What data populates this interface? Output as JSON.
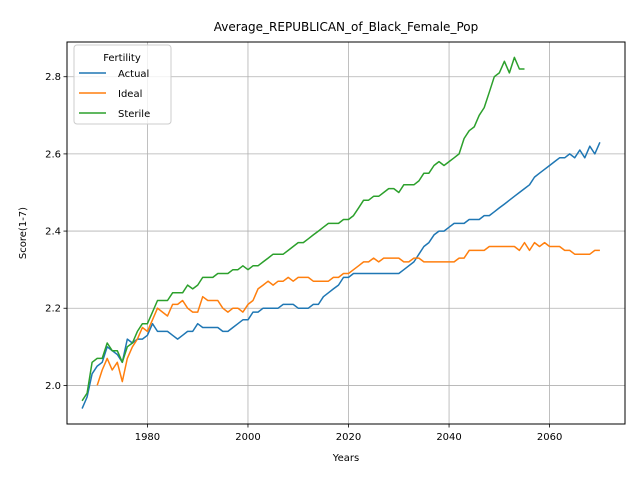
{
  "chart_data": {
    "type": "line",
    "title": "Average_REPUBLICAN_of_Black_Female_Pop",
    "xlabel": "Years",
    "ylabel": "Score(1-7)",
    "xlim": [
      1964,
      2075
    ],
    "ylim": [
      1.9,
      2.89
    ],
    "xticks": [
      1980,
      2000,
      2020,
      2040,
      2060
    ],
    "yticks": [
      2.0,
      2.2,
      2.4,
      2.6,
      2.8
    ],
    "xtick_labels": [
      "1980",
      "2000",
      "2020",
      "2040",
      "2060"
    ],
    "ytick_labels": [
      "2.0",
      "2.2",
      "2.4",
      "2.6",
      "2.8"
    ],
    "grid": true,
    "legend": {
      "title": "Fertility",
      "position": "upper-left"
    },
    "series": [
      {
        "name": "Actual",
        "color": "#1f77b4",
        "x": [
          1967,
          1968,
          1969,
          1970,
          1971,
          1972,
          1973,
          1974,
          1975,
          1976,
          1977,
          1978,
          1979,
          1980,
          1981,
          1982,
          1983,
          1984,
          1985,
          1986,
          1987,
          1988,
          1989,
          1990,
          1991,
          1992,
          1993,
          1994,
          1995,
          1996,
          1997,
          1998,
          1999,
          2000,
          2001,
          2002,
          2003,
          2004,
          2005,
          2006,
          2007,
          2008,
          2009,
          2010,
          2011,
          2012,
          2013,
          2014,
          2015,
          2016,
          2017,
          2018,
          2019,
          2020,
          2021,
          2022,
          2023,
          2024,
          2025,
          2026,
          2027,
          2028,
          2029,
          2030,
          2031,
          2032,
          2033,
          2034,
          2035,
          2036,
          2037,
          2038,
          2039,
          2040,
          2041,
          2042,
          2043,
          2044,
          2045,
          2046,
          2047,
          2048,
          2049,
          2050,
          2051,
          2052,
          2053,
          2054,
          2055,
          2056,
          2057,
          2058,
          2059,
          2060,
          2061,
          2062,
          2063,
          2064,
          2065,
          2066,
          2067,
          2068,
          2069,
          2070
        ],
        "y": [
          1.94,
          1.97,
          2.03,
          2.05,
          2.06,
          2.1,
          2.09,
          2.08,
          2.06,
          2.12,
          2.11,
          2.12,
          2.12,
          2.13,
          2.16,
          2.14,
          2.14,
          2.14,
          2.13,
          2.12,
          2.13,
          2.14,
          2.14,
          2.16,
          2.15,
          2.15,
          2.15,
          2.15,
          2.14,
          2.14,
          2.15,
          2.16,
          2.17,
          2.17,
          2.19,
          2.19,
          2.2,
          2.2,
          2.2,
          2.2,
          2.21,
          2.21,
          2.21,
          2.2,
          2.2,
          2.2,
          2.21,
          2.21,
          2.23,
          2.24,
          2.25,
          2.26,
          2.28,
          2.28,
          2.29,
          2.29,
          2.29,
          2.29,
          2.29,
          2.29,
          2.29,
          2.29,
          2.29,
          2.29,
          2.3,
          2.31,
          2.32,
          2.34,
          2.36,
          2.37,
          2.39,
          2.4,
          2.4,
          2.41,
          2.42,
          2.42,
          2.42,
          2.43,
          2.43,
          2.43,
          2.44,
          2.44,
          2.45,
          2.46,
          2.47,
          2.48,
          2.49,
          2.5,
          2.51,
          2.52,
          2.54,
          2.55,
          2.56,
          2.57,
          2.58,
          2.59,
          2.59,
          2.6,
          2.59,
          2.61,
          2.59,
          2.62,
          2.6,
          2.63
        ]
      },
      {
        "name": "Ideal",
        "color": "#ff7f0e",
        "x": [
          1970,
          1971,
          1972,
          1973,
          1974,
          1975,
          1976,
          1977,
          1978,
          1979,
          1980,
          1981,
          1982,
          1983,
          1984,
          1985,
          1986,
          1987,
          1988,
          1989,
          1990,
          1991,
          1992,
          1993,
          1994,
          1995,
          1996,
          1997,
          1998,
          1999,
          2000,
          2001,
          2002,
          2003,
          2004,
          2005,
          2006,
          2007,
          2008,
          2009,
          2010,
          2011,
          2012,
          2013,
          2014,
          2015,
          2016,
          2017,
          2018,
          2019,
          2020,
          2021,
          2022,
          2023,
          2024,
          2025,
          2026,
          2027,
          2028,
          2029,
          2030,
          2031,
          2032,
          2033,
          2034,
          2035,
          2036,
          2037,
          2038,
          2039,
          2040,
          2041,
          2042,
          2043,
          2044,
          2045,
          2046,
          2047,
          2048,
          2049,
          2050,
          2051,
          2052,
          2053,
          2054,
          2055,
          2056,
          2057,
          2058,
          2059,
          2060,
          2061,
          2062,
          2063,
          2064,
          2065,
          2066,
          2067,
          2068,
          2069,
          2070
        ],
        "y": [
          2.0,
          2.04,
          2.07,
          2.04,
          2.06,
          2.01,
          2.07,
          2.1,
          2.12,
          2.15,
          2.14,
          2.17,
          2.2,
          2.19,
          2.18,
          2.21,
          2.21,
          2.22,
          2.2,
          2.19,
          2.19,
          2.23,
          2.22,
          2.22,
          2.22,
          2.2,
          2.19,
          2.2,
          2.2,
          2.19,
          2.21,
          2.22,
          2.25,
          2.26,
          2.27,
          2.26,
          2.27,
          2.27,
          2.28,
          2.27,
          2.28,
          2.28,
          2.28,
          2.27,
          2.27,
          2.27,
          2.27,
          2.28,
          2.28,
          2.29,
          2.29,
          2.3,
          2.31,
          2.32,
          2.32,
          2.33,
          2.32,
          2.33,
          2.33,
          2.33,
          2.33,
          2.32,
          2.32,
          2.33,
          2.33,
          2.32,
          2.32,
          2.32,
          2.32,
          2.32,
          2.32,
          2.32,
          2.33,
          2.33,
          2.35,
          2.35,
          2.35,
          2.35,
          2.36,
          2.36,
          2.36,
          2.36,
          2.36,
          2.36,
          2.35,
          2.37,
          2.35,
          2.37,
          2.36,
          2.37,
          2.36,
          2.36,
          2.36,
          2.35,
          2.35,
          2.34,
          2.34,
          2.34,
          2.34,
          2.35,
          2.35
        ]
      },
      {
        "name": "Sterile",
        "color": "#2ca02c",
        "x": [
          1967,
          1968,
          1969,
          1970,
          1971,
          1972,
          1973,
          1974,
          1975,
          1976,
          1977,
          1978,
          1979,
          1980,
          1981,
          1982,
          1983,
          1984,
          1985,
          1986,
          1987,
          1988,
          1989,
          1990,
          1991,
          1992,
          1993,
          1994,
          1995,
          1996,
          1997,
          1998,
          1999,
          2000,
          2001,
          2002,
          2003,
          2004,
          2005,
          2006,
          2007,
          2008,
          2009,
          2010,
          2011,
          2012,
          2013,
          2014,
          2015,
          2016,
          2017,
          2018,
          2019,
          2020,
          2021,
          2022,
          2023,
          2024,
          2025,
          2026,
          2027,
          2028,
          2029,
          2030,
          2031,
          2032,
          2033,
          2034,
          2035,
          2036,
          2037,
          2038,
          2039,
          2040,
          2041,
          2042,
          2043,
          2044,
          2045,
          2046,
          2047,
          2048,
          2049,
          2050,
          2051,
          2052,
          2053,
          2054,
          2055
        ],
        "y": [
          1.96,
          1.98,
          2.06,
          2.07,
          2.07,
          2.11,
          2.09,
          2.09,
          2.06,
          2.1,
          2.11,
          2.14,
          2.16,
          2.16,
          2.19,
          2.22,
          2.22,
          2.22,
          2.24,
          2.24,
          2.24,
          2.26,
          2.25,
          2.26,
          2.28,
          2.28,
          2.28,
          2.29,
          2.29,
          2.29,
          2.3,
          2.3,
          2.31,
          2.3,
          2.31,
          2.31,
          2.32,
          2.33,
          2.34,
          2.34,
          2.34,
          2.35,
          2.36,
          2.37,
          2.37,
          2.38,
          2.39,
          2.4,
          2.41,
          2.42,
          2.42,
          2.42,
          2.43,
          2.43,
          2.44,
          2.46,
          2.48,
          2.48,
          2.49,
          2.49,
          2.5,
          2.51,
          2.51,
          2.5,
          2.52,
          2.52,
          2.52,
          2.53,
          2.55,
          2.55,
          2.57,
          2.58,
          2.57,
          2.58,
          2.59,
          2.6,
          2.64,
          2.66,
          2.67,
          2.7,
          2.72,
          2.76,
          2.8,
          2.81,
          2.84,
          2.81,
          2.85,
          2.82,
          2.82
        ]
      }
    ]
  }
}
